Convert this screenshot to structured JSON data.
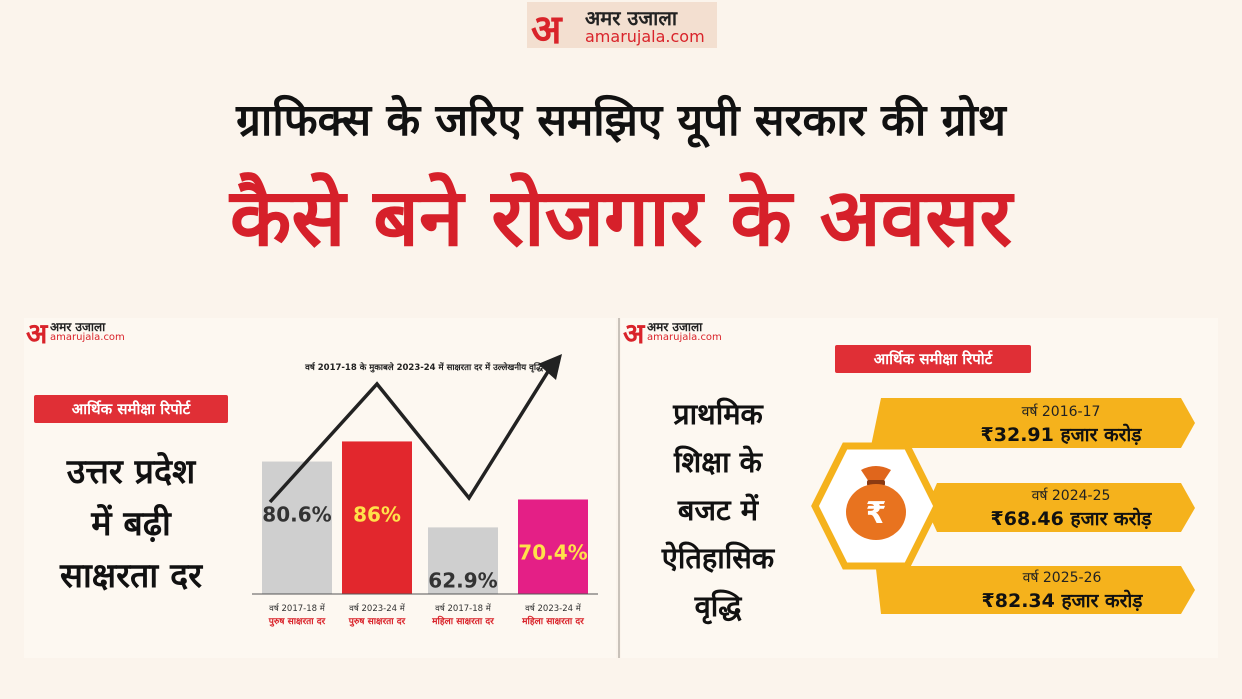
{
  "header": {
    "logo_glyph": "अ",
    "logo_hindi": "अमर उजाला",
    "logo_english": "amarujala.com",
    "headline_1": "ग्राफिक्स के जरिए समझिए यूपी सरकार की ग्रोथ",
    "headline_2": "कैसे बने रोजगार के अवसर"
  },
  "left_panel": {
    "badge": "आर्थिक समीक्षा रिपोर्ट",
    "title_lines": [
      "उत्तर प्रदेश",
      "में बढ़ी",
      "साक्षरता दर"
    ],
    "chart_caption": "वर्ष 2017-18 के मुकाबले 2023-24 में साक्षरता दर में उल्लेखनीय वृद्धि"
  },
  "chart_data": {
    "type": "bar",
    "categories": [
      "वर्ष 2017-18 में पुरुष साक्षरता दर",
      "वर्ष 2023-24 में पुरुष साक्षरता दर",
      "वर्ष 2017-18 में महिला साक्षरता दर",
      "वर्ष 2023-24 में महिला साक्षरता दर"
    ],
    "category_year": [
      "वर्ष 2017-18 में",
      "वर्ष 2023-24 में",
      "वर्ष 2017-18 में",
      "वर्ष 2023-24 में"
    ],
    "category_label": [
      "पुरुष साक्षरता दर",
      "पुरुष साक्षरता दर",
      "महिला साक्षरता दर",
      "महिला साक्षरता दर"
    ],
    "values": [
      80.6,
      86,
      62.9,
      70.4
    ],
    "data_labels": [
      "80.6%",
      "86%",
      "62.9%",
      "70.4%"
    ],
    "colors": [
      "#cfcfcf",
      "#e2272d",
      "#cfcfcf",
      "#e41f86"
    ],
    "label_colors": [
      "#333333",
      "#ffe14a",
      "#333333",
      "#ffe14a"
    ],
    "title": "वर्ष 2017-18 के मुकाबले 2023-24 में साक्षरता दर में उल्लेखनीय वृद्धि"
  },
  "right_panel": {
    "badge": "आर्थिक समीक्षा रिपोर्ट",
    "title_lines": [
      "प्राथमिक",
      "शिक्षा के",
      "बजट में",
      "ऐतिहासिक",
      "वृद्धि"
    ],
    "icon": "money-bag-rupee-icon",
    "budget_items": [
      {
        "year": "वर्ष 2016-17",
        "amount": "₹32.91 हजार करोड़"
      },
      {
        "year": "वर्ष 2024-25",
        "amount": "₹68.46 हजार करोड़"
      },
      {
        "year": "वर्ष 2025-26",
        "amount": "₹82.34 हजार करोड़"
      }
    ]
  }
}
